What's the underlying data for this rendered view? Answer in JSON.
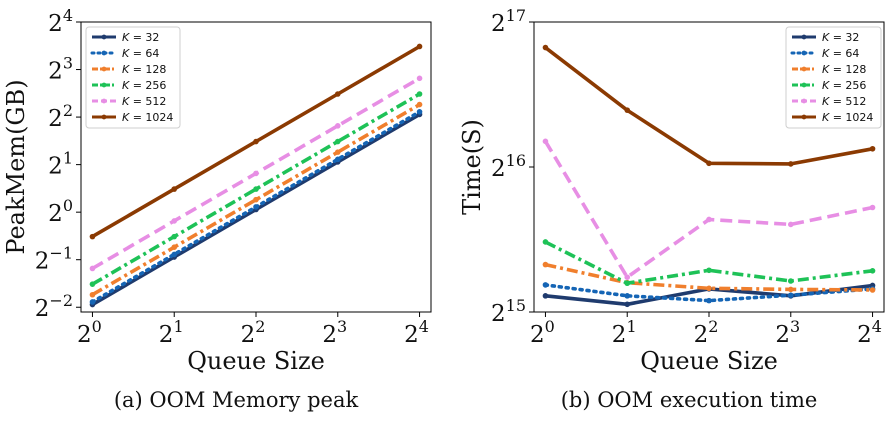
{
  "chart_data": [
    {
      "type": "line",
      "caption": "(a) OOM Memory peak",
      "xlabel": "Queue Size",
      "ylabel": "PeakMem(GB)",
      "x": [
        1,
        2,
        4,
        8,
        16
      ],
      "x_tick_labels": [
        {
          "base": "2",
          "exp": "0"
        },
        {
          "base": "2",
          "exp": "1"
        },
        {
          "base": "2",
          "exp": "2"
        },
        {
          "base": "2",
          "exp": "3"
        },
        {
          "base": "2",
          "exp": "4"
        }
      ],
      "x_scale": "log2",
      "y_scale": "log2",
      "y_ticks": [
        0.25,
        0.5,
        1,
        2,
        4,
        8,
        16
      ],
      "y_tick_labels": [
        {
          "base": "2",
          "exp": "−2"
        },
        {
          "base": "2",
          "exp": "−1"
        },
        {
          "base": "2",
          "exp": "0"
        },
        {
          "base": "2",
          "exp": "1"
        },
        {
          "base": "2",
          "exp": "2"
        },
        {
          "base": "2",
          "exp": "3"
        },
        {
          "base": "2",
          "exp": "4"
        }
      ],
      "ylim": [
        0.25,
        16
      ],
      "legend": "upper left",
      "grid": false,
      "series": [
        {
          "name": "K = 32",
          "values": [
            0.26,
            0.52,
            1.04,
            2.08,
            4.16
          ]
        },
        {
          "name": "K = 64",
          "values": [
            0.27,
            0.54,
            1.08,
            2.16,
            4.32
          ]
        },
        {
          "name": "K = 128",
          "values": [
            0.3,
            0.6,
            1.2,
            2.4,
            4.8
          ]
        },
        {
          "name": "K = 256",
          "values": [
            0.35,
            0.7,
            1.4,
            2.8,
            5.6
          ]
        },
        {
          "name": "K = 512",
          "values": [
            0.44,
            0.88,
            1.76,
            3.52,
            7.04
          ]
        },
        {
          "name": "K = 1024",
          "values": [
            0.7,
            1.4,
            2.8,
            5.6,
            11.2
          ]
        }
      ]
    },
    {
      "type": "line",
      "caption": "(b) OOM execution time",
      "xlabel": "Queue Size",
      "ylabel": "Time(S)",
      "x": [
        1,
        2,
        4,
        8,
        16
      ],
      "x_tick_labels": [
        {
          "base": "2",
          "exp": "0"
        },
        {
          "base": "2",
          "exp": "1"
        },
        {
          "base": "2",
          "exp": "2"
        },
        {
          "base": "2",
          "exp": "3"
        },
        {
          "base": "2",
          "exp": "4"
        }
      ],
      "x_scale": "log2",
      "y_scale": "log2",
      "y_ticks": [
        32768,
        65536,
        131072
      ],
      "y_tick_labels": [
        {
          "base": "2",
          "exp": "15"
        },
        {
          "base": "2",
          "exp": "16"
        },
        {
          "base": "2",
          "exp": "17"
        }
      ],
      "ylim": [
        32768,
        131072
      ],
      "legend": "upper right",
      "grid": false,
      "series": [
        {
          "name": "K = 32",
          "values": [
            35400,
            34000,
            36600,
            35400,
            37200
          ]
        },
        {
          "name": "K = 64",
          "values": [
            37300,
            35400,
            34600,
            35500,
            36600
          ]
        },
        {
          "name": "K = 128",
          "values": [
            41100,
            37700,
            36700,
            36500,
            36400
          ]
        },
        {
          "name": "K = 256",
          "values": [
            45800,
            37600,
            40000,
            38000,
            39900
          ]
        },
        {
          "name": "K = 512",
          "values": [
            74100,
            38700,
            51000,
            49800,
            54000
          ]
        },
        {
          "name": "K = 1024",
          "values": [
            116000,
            86000,
            66700,
            66500,
            71500
          ]
        }
      ]
    }
  ],
  "series_colors": [
    "#1f3b6e",
    "#1565b5",
    "#f07f2d",
    "#1ec257",
    "#e78ee4",
    "#8b3a02"
  ],
  "series_dash": [
    "solid",
    "dotted",
    "dashdot",
    "dashdot",
    "dashed",
    "solid"
  ]
}
